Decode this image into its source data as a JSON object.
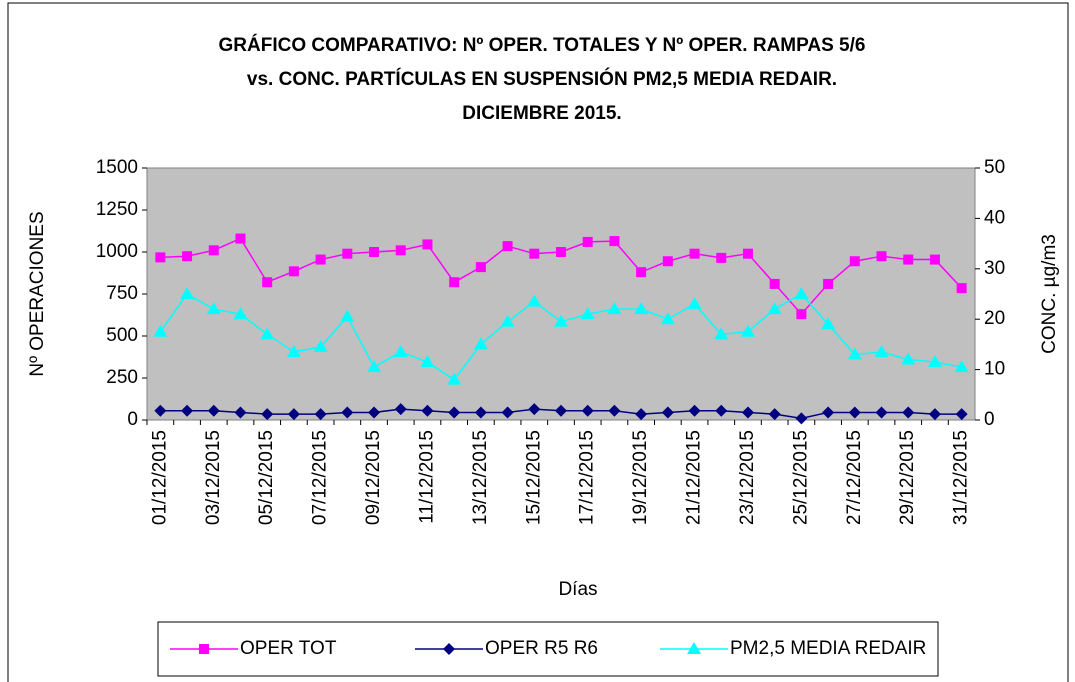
{
  "chart_data": {
    "type": "line",
    "title": [
      "GRÁFICO COMPARATIVO: Nº OPER. TOTALES Y Nº OPER. RAMPAS 5/6",
      "vs. CONC. PARTÍCULAS EN SUSPENSIÓN PM2,5 MEDIA REDAIR.",
      "DICIEMBRE 2015."
    ],
    "x_label": "Días",
    "y_label": "Nº OPERACIONES",
    "y2_label": "CONC. µg/m3",
    "categories": [
      "01/12/2015",
      null,
      "03/12/2015",
      null,
      "05/12/2015",
      null,
      "07/12/2015",
      null,
      "09/12/2015",
      null,
      "11/12/2015",
      null,
      "13/12/2015",
      null,
      "15/12/2015",
      null,
      "17/12/2015",
      null,
      "19/12/2015",
      null,
      "21/12/2015",
      null,
      "23/12/2015",
      null,
      "25/12/2015",
      null,
      "27/12/2015",
      null,
      "29/12/2015",
      null,
      "31/12/2015"
    ],
    "ylim": [
      0,
      1500
    ],
    "yticks": [
      0,
      250,
      500,
      750,
      1000,
      1250,
      1500
    ],
    "y2lim": [
      0,
      50
    ],
    "y2ticks": [
      0,
      10,
      20,
      30,
      40,
      50
    ],
    "series": [
      {
        "name": "OPER TOT",
        "color": "#ff00ff",
        "marker": "square",
        "values": [
          968,
          975,
          1010,
          1080,
          820,
          885,
          955,
          990,
          1000,
          1010,
          1045,
          820,
          910,
          1035,
          990,
          1000,
          1060,
          1065,
          880,
          945,
          990,
          965,
          990,
          810,
          630,
          810,
          945,
          975,
          955,
          955,
          785
        ]
      },
      {
        "name": "OPER R5 R6",
        "color": "#000080",
        "marker": "diamond",
        "values": [
          55,
          55,
          55,
          45,
          35,
          35,
          35,
          45,
          45,
          65,
          55,
          45,
          45,
          45,
          65,
          55,
          55,
          55,
          35,
          45,
          55,
          55,
          45,
          35,
          10,
          45,
          45,
          45,
          45,
          35,
          35
        ]
      },
      {
        "name": "PM2,5 MEDIA REDAIR",
        "color": "#00ffff",
        "marker": "triangle",
        "axis": "y2",
        "values": [
          17.5,
          25,
          22,
          21,
          17,
          13.5,
          14.5,
          20.5,
          10.5,
          13.5,
          11.5,
          8,
          15,
          19.5,
          23.5,
          19.5,
          21,
          22,
          22,
          20,
          23,
          17,
          17.5,
          22,
          25,
          19,
          13,
          13.5,
          12,
          11.5,
          10.5
        ]
      }
    ]
  }
}
